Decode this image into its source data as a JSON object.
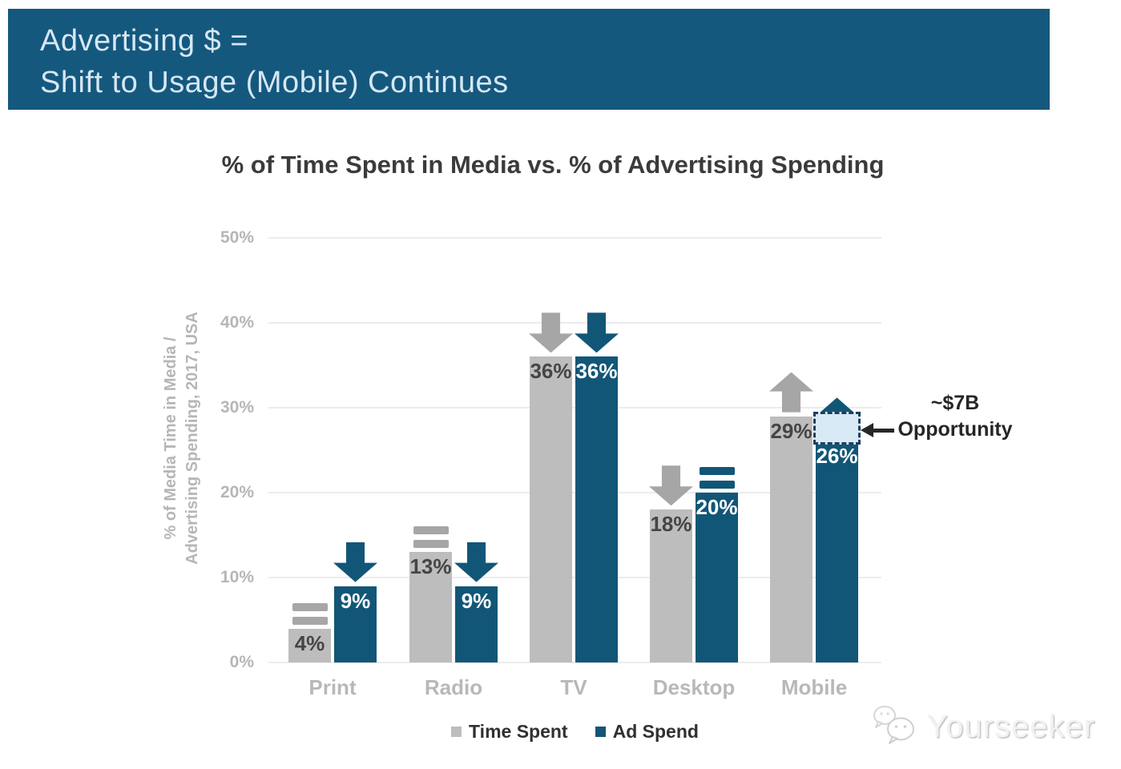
{
  "banner": {
    "line1": "Advertising $ =",
    "line2": "Shift to Usage (Mobile) Continues"
  },
  "chart": {
    "title": "% of Time Spent in Media vs. % of Advertising Spending",
    "y_axis_label_line1": "% of Media Time in Media /",
    "y_axis_label_line2": "Advertising Spending, 2017, USA"
  },
  "chart_data": {
    "type": "bar",
    "title": "% of Time Spent in Media vs. % of Advertising Spending",
    "categories": [
      "Print",
      "Radio",
      "TV",
      "Desktop",
      "Mobile"
    ],
    "series": [
      {
        "name": "Time Spent",
        "values": [
          4,
          13,
          36,
          18,
          29
        ],
        "value_labels": [
          "4%",
          "13%",
          "36%",
          "18%",
          "29%"
        ],
        "trend_markers": [
          "flat",
          "flat",
          "down",
          "down",
          "up"
        ]
      },
      {
        "name": "Ad Spend",
        "values": [
          9,
          9,
          36,
          20,
          26
        ],
        "value_labels": [
          "9%",
          "9%",
          "36%",
          "20%",
          "26%"
        ],
        "trend_markers": [
          "down",
          "down",
          "down",
          "flat",
          "up"
        ]
      }
    ],
    "ylabel": "% of Media Time in Media / Advertising Spending, 2017, USA",
    "ylim": [
      0,
      50
    ],
    "yticks": [
      0,
      10,
      20,
      30,
      40,
      50
    ],
    "tick_format": "{v}%",
    "grid": true,
    "legend_position": "bottom",
    "opportunity": {
      "category": "Mobile",
      "series": "Ad Spend",
      "from": 26,
      "to": 29,
      "label_line1": "~$7B",
      "label_line2": "Opportunity"
    }
  },
  "watermark": {
    "label": "Yourseeker"
  },
  "colors": {
    "banner_bg": "#15587E",
    "banner_text": "#d5e7f3",
    "bar_gray": "#bdbdbd",
    "bar_blue": "#125677",
    "marker_gray": "#a6a6a6",
    "marker_blue": "#125677",
    "grid": "#ececec",
    "axis_text": "#b6b6b6",
    "category_text": "#b8b8b8",
    "value_dark": "#454545",
    "value_light": "#ffffff",
    "title_text": "#3b3b3b",
    "legend_text": "#303030",
    "annotation_text": "#262626",
    "opportunity_fill": "#d8eaf6",
    "opportunity_border": "#1f3d5a",
    "watermark": "#f2f2f2"
  }
}
